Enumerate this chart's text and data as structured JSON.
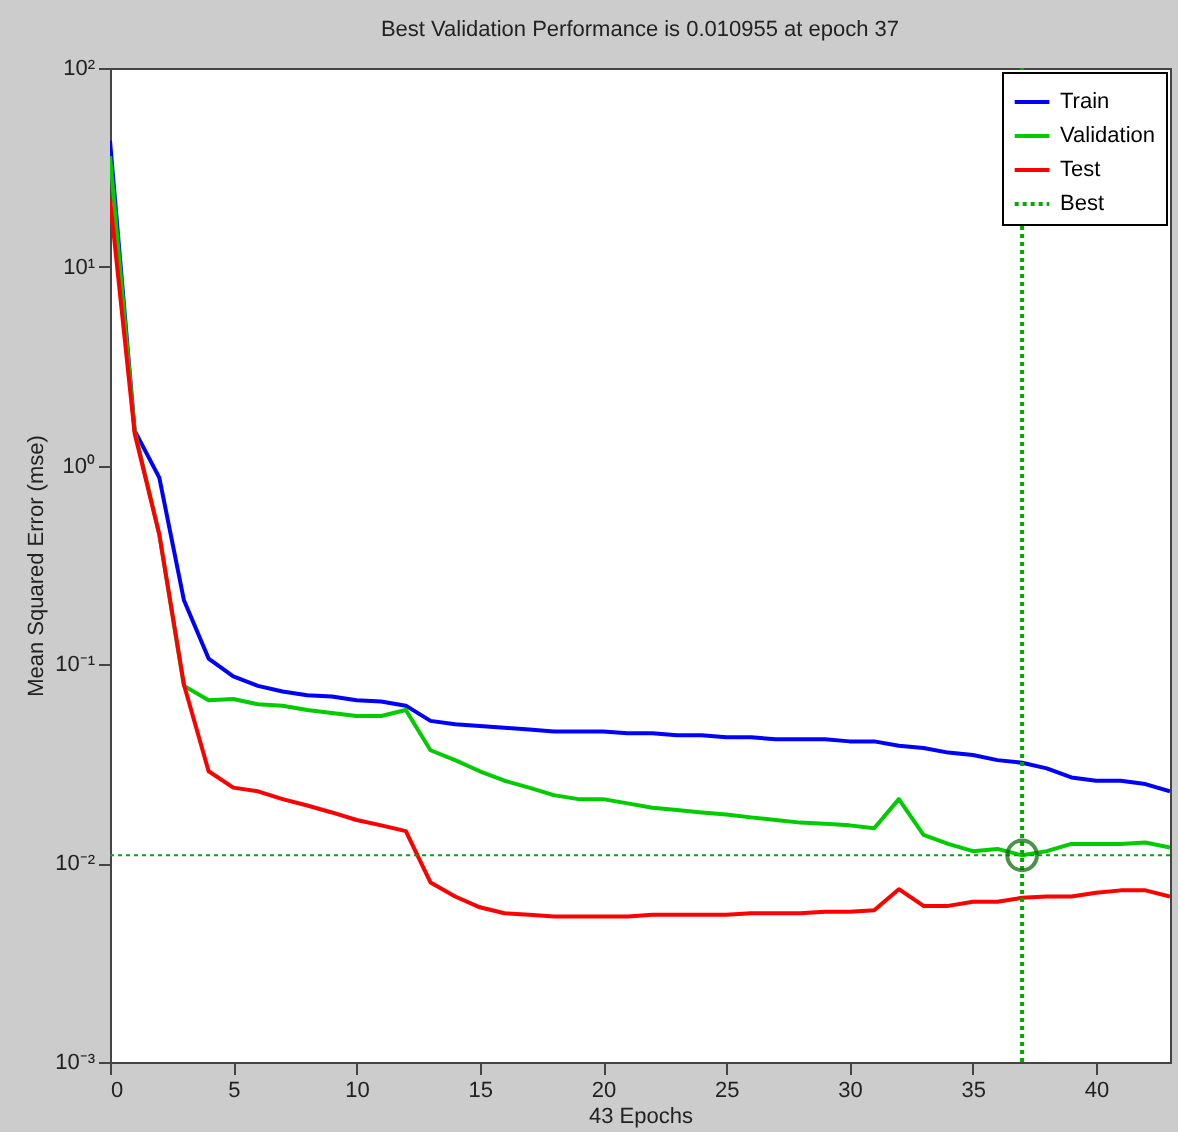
{
  "chart_data": {
    "type": "line",
    "title": "Best Validation Performance is 0.010955 at epoch 37",
    "xlabel": "43 Epochs",
    "ylabel": "Mean Squared Error  (mse)",
    "x": [
      0,
      1,
      2,
      3,
      4,
      5,
      6,
      7,
      8,
      9,
      10,
      11,
      12,
      13,
      14,
      15,
      16,
      17,
      18,
      19,
      20,
      21,
      22,
      23,
      24,
      25,
      26,
      27,
      28,
      29,
      30,
      31,
      32,
      33,
      34,
      35,
      36,
      37,
      38,
      39,
      40,
      41,
      42,
      43
    ],
    "series": [
      {
        "name": "Train",
        "color": "#0000ff",
        "values": [
          43,
          1.5,
          0.87,
          0.21,
          0.107,
          0.087,
          0.078,
          0.073,
          0.07,
          0.069,
          0.066,
          0.065,
          0.062,
          0.052,
          0.05,
          0.049,
          0.048,
          0.047,
          0.046,
          0.046,
          0.046,
          0.045,
          0.045,
          0.044,
          0.044,
          0.043,
          0.043,
          0.042,
          0.042,
          0.042,
          0.041,
          0.041,
          0.039,
          0.038,
          0.036,
          0.035,
          0.033,
          0.032,
          0.03,
          0.027,
          0.026,
          0.026,
          0.025,
          0.023
        ]
      },
      {
        "name": "Validation",
        "color": "#00cc00",
        "values": [
          36,
          1.5,
          0.45,
          0.078,
          0.066,
          0.067,
          0.063,
          0.062,
          0.059,
          0.057,
          0.055,
          0.055,
          0.059,
          0.037,
          0.033,
          0.029,
          0.026,
          0.024,
          0.022,
          0.021,
          0.021,
          0.02,
          0.019,
          0.0185,
          0.018,
          0.0176,
          0.017,
          0.0165,
          0.016,
          0.0158,
          0.0155,
          0.015,
          0.021,
          0.0139,
          0.0125,
          0.0115,
          0.0118,
          0.010955,
          0.0115,
          0.0125,
          0.0125,
          0.0125,
          0.0127,
          0.012
        ]
      },
      {
        "name": "Test",
        "color": "#ff0000",
        "values": [
          22,
          1.45,
          0.45,
          0.079,
          0.029,
          0.024,
          0.023,
          0.021,
          0.0195,
          0.018,
          0.0165,
          0.0155,
          0.0145,
          0.008,
          0.0068,
          0.006,
          0.0056,
          0.0055,
          0.0054,
          0.0054,
          0.0054,
          0.0054,
          0.0055,
          0.0055,
          0.0055,
          0.0055,
          0.0056,
          0.0056,
          0.0056,
          0.0057,
          0.0057,
          0.0058,
          0.0074,
          0.0061,
          0.0061,
          0.0064,
          0.0064,
          0.0067,
          0.0068,
          0.0068,
          0.0071,
          0.0073,
          0.0073,
          0.0068
        ]
      },
      {
        "type": "scatter",
        "x": [
          37
        ],
        "color": "#006600",
        "marker": "circle",
        "values": [
          0.010955
        ]
      }
    ],
    "ref_lines": [
      {
        "axis": "x",
        "value": 37,
        "label": "Best",
        "color": "#00aa00",
        "line_style": "dotted"
      },
      {
        "axis": "y",
        "value": 0.010955,
        "color": "#00aa00",
        "line_style": "dotted"
      }
    ],
    "log": true,
    "xlim": [
      0,
      43
    ],
    "xticks": [
      0,
      5,
      10,
      15,
      20,
      25,
      30,
      35,
      40
    ],
    "ylim": [
      0.001,
      100
    ],
    "yticks": [
      {
        "value": 0.001,
        "label": "10⁻³"
      },
      {
        "value": 0.01,
        "label": "10⁻²"
      },
      {
        "value": 0.1,
        "label": "10⁻¹"
      },
      {
        "value": 1,
        "label": "10⁰"
      },
      {
        "value": 10,
        "label": "10¹"
      },
      {
        "value": 100,
        "label": "10²"
      }
    ],
    "grid": false,
    "legend": "top right",
    "line_style": "solid"
  }
}
